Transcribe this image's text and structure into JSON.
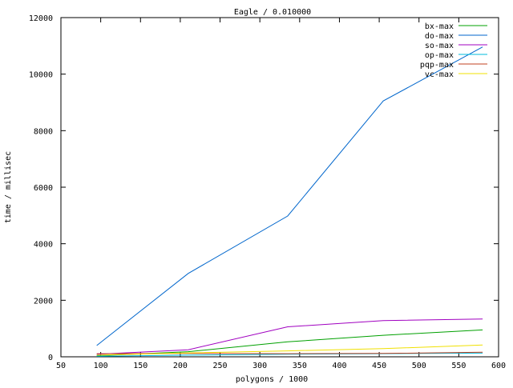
{
  "chart_data": {
    "type": "line",
    "title": "Eagle / 0.010000",
    "xlabel": "polygons / 1000",
    "ylabel": "time / millisec",
    "xlim": [
      50,
      600
    ],
    "ylim": [
      0,
      12000
    ],
    "xticks": [
      50,
      100,
      150,
      200,
      250,
      300,
      350,
      400,
      450,
      500,
      550,
      600
    ],
    "yticks": [
      0,
      2000,
      4000,
      6000,
      8000,
      10000,
      12000
    ],
    "grid": false,
    "legend_position": "top-right",
    "x": [
      95,
      210,
      335,
      455,
      580
    ],
    "series": [
      {
        "name": "bx-max",
        "color": "#00a000",
        "values": [
          40,
          180,
          530,
          760,
          950
        ]
      },
      {
        "name": "do-max",
        "color": "#0066cc",
        "values": [
          400,
          2950,
          4980,
          9050,
          10960
        ]
      },
      {
        "name": "so-max",
        "color": "#a000c0",
        "values": [
          90,
          250,
          1060,
          1280,
          1340
        ]
      },
      {
        "name": "op-max",
        "color": "#00bbdd",
        "values": [
          20,
          60,
          90,
          110,
          130
        ]
      },
      {
        "name": "pqp-max",
        "color": "#c04020",
        "values": [
          110,
          120,
          110,
          120,
          160
        ]
      },
      {
        "name": "vc-max",
        "color": "#f0e000",
        "values": [
          60,
          140,
          210,
          290,
          420
        ]
      }
    ]
  }
}
